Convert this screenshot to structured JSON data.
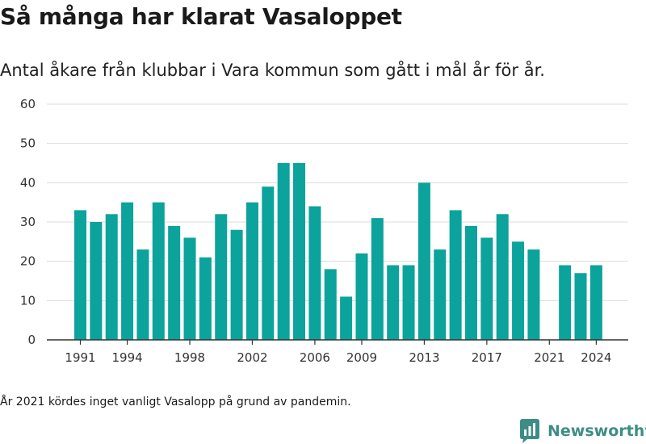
{
  "title": "Så många har klarat Vasaloppet",
  "subtitle": "Antal åkare från klubbar i Vara kommun som gått i mål år för år.",
  "footnote": "År 2021 kördes inget vanligt Vasalopp på grund av pandemin.",
  "brand": {
    "name": "Newsworthy",
    "icon": "newsworthy-logo-icon",
    "color": "#3d8d86"
  },
  "chart_data": {
    "type": "bar",
    "categories": [
      1991,
      1992,
      1993,
      1994,
      1995,
      1996,
      1997,
      1998,
      1999,
      2000,
      2001,
      2002,
      2003,
      2004,
      2005,
      2006,
      2007,
      2008,
      2009,
      2010,
      2011,
      2012,
      2013,
      2014,
      2015,
      2016,
      2017,
      2018,
      2019,
      2020,
      2021,
      2022,
      2023,
      2024
    ],
    "values": [
      33,
      30,
      32,
      35,
      23,
      35,
      29,
      26,
      21,
      32,
      28,
      35,
      39,
      45,
      45,
      34,
      18,
      11,
      22,
      31,
      19,
      19,
      40,
      23,
      33,
      29,
      26,
      32,
      25,
      23,
      null,
      19,
      17,
      19
    ],
    "x_tick_labels": [
      "1991",
      "1994",
      "1998",
      "2002",
      "2006",
      "2009",
      "2013",
      "2017",
      "2021",
      "2024"
    ],
    "y_ticks": [
      0,
      10,
      20,
      30,
      40,
      50,
      60
    ],
    "ylim": [
      0,
      60
    ],
    "bar_color": "#0ba39b",
    "grid": true,
    "legend": "none"
  }
}
